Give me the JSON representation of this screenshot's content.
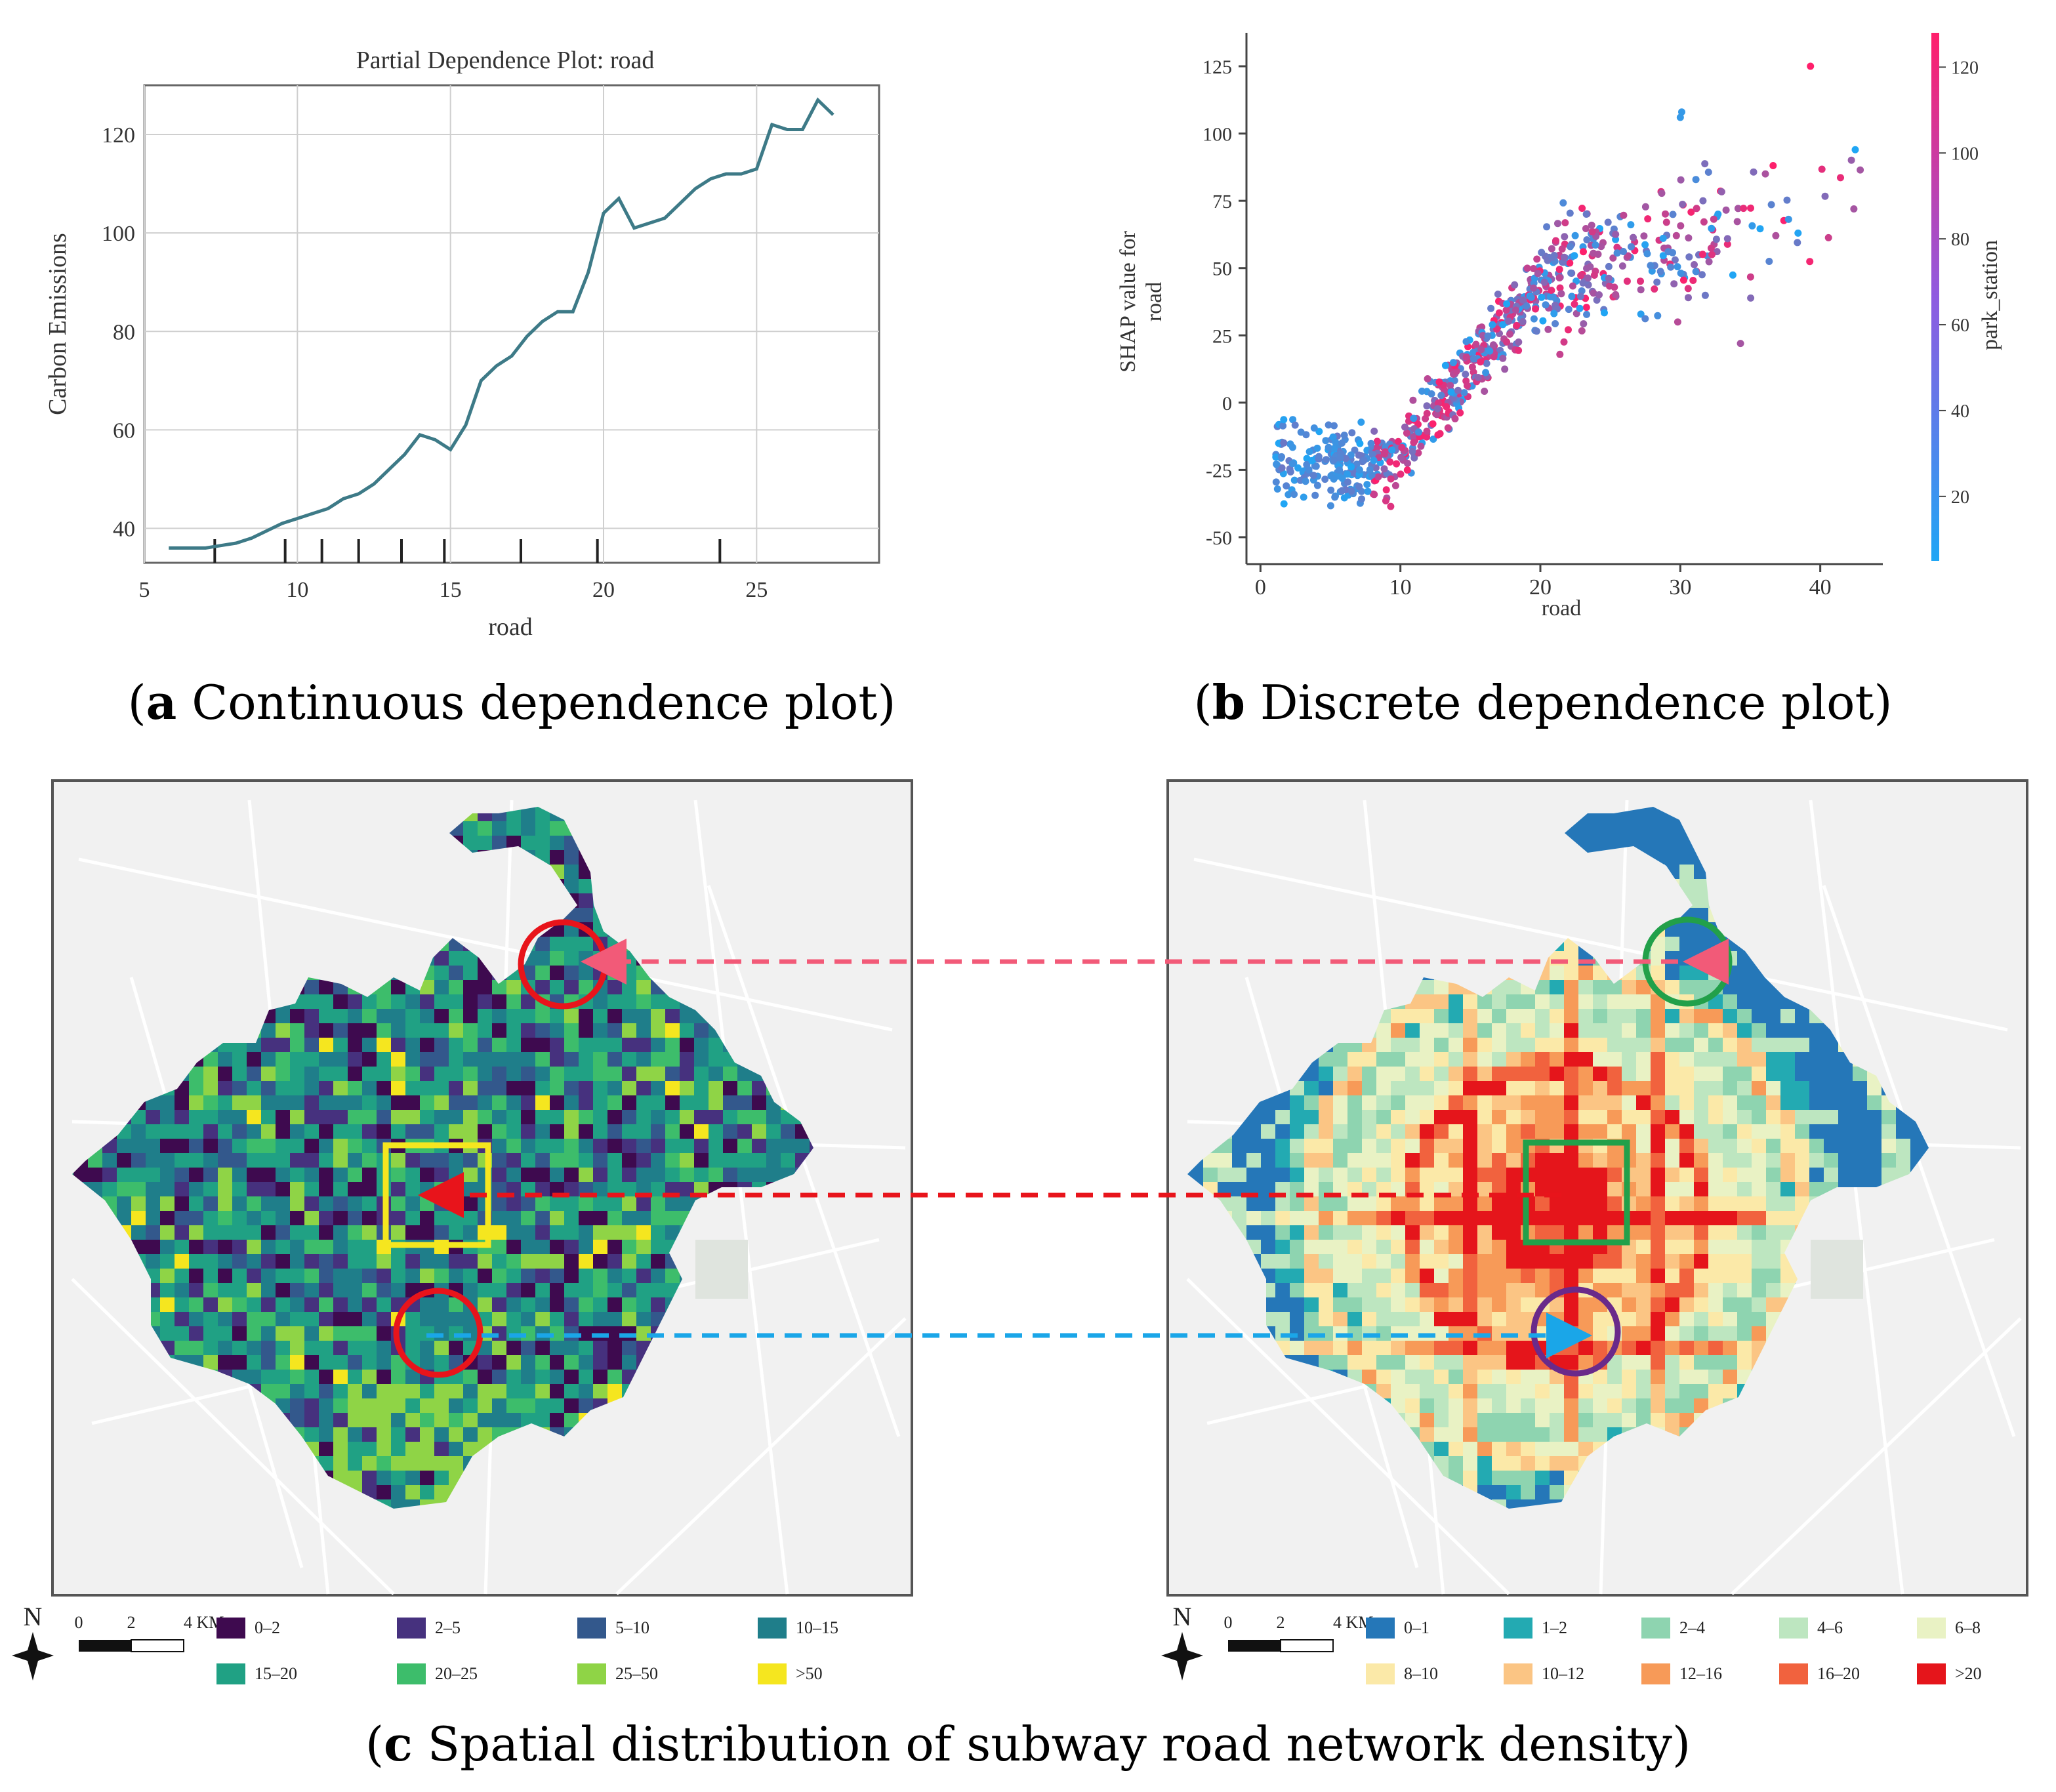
{
  "captions": {
    "a_letter": "a",
    "a_text": " Continuous dependence plot",
    "b_letter": "b",
    "b_text": " Discrete dependence plot",
    "c_letter": "c",
    "c_text": " Spatial distribution of subway road network density"
  },
  "chart_data": [
    {
      "type": "line",
      "title": "Partial Dependence Plot: road",
      "xlabel": "road",
      "ylabel": "Carbon Emissions",
      "xlim": [
        5,
        29
      ],
      "ylim": [
        33,
        130
      ],
      "xticks": [
        5,
        10,
        15,
        20,
        25
      ],
      "yticks": [
        40,
        60,
        80,
        100,
        120
      ],
      "grid": true,
      "x": [
        5.8,
        6.5,
        7.0,
        7.5,
        8.0,
        8.5,
        9.0,
        9.5,
        10.0,
        10.5,
        11.0,
        11.5,
        12.0,
        12.5,
        13.0,
        13.5,
        14.0,
        14.5,
        15.0,
        15.5,
        16.0,
        16.5,
        17.0,
        17.5,
        18.0,
        18.5,
        19.0,
        19.5,
        20.0,
        20.5,
        21.0,
        21.5,
        22.0,
        22.5,
        23.0,
        23.5,
        24.0,
        24.5,
        25.0,
        25.5,
        26.0,
        26.5,
        27.0,
        27.5
      ],
      "values": [
        36,
        36,
        36,
        36.5,
        37,
        38,
        39.5,
        41,
        42,
        43,
        44,
        46,
        47,
        49,
        52,
        55,
        59,
        58,
        56,
        61,
        70,
        73,
        75,
        79,
        82,
        84,
        84,
        92,
        104,
        107,
        101,
        102,
        103,
        106,
        109,
        111,
        112,
        112,
        113,
        122,
        121,
        121,
        127,
        124
      ],
      "rug": [
        7.3,
        9.6,
        10.8,
        12.0,
        13.4,
        14.8,
        17.3,
        19.8,
        23.8
      ]
    },
    {
      "type": "scatter",
      "xlabel": "road",
      "ylabel": "SHAP value for road",
      "xlim": [
        -1,
        44
      ],
      "ylim": [
        -60,
        135
      ],
      "xticks": [
        0,
        10,
        20,
        30,
        40
      ],
      "yticks": [
        -50,
        -25,
        0,
        25,
        50,
        75,
        100,
        125
      ],
      "colorbar": {
        "label": "park_station",
        "ticks": [
          20,
          40,
          60,
          80,
          100,
          120
        ],
        "range": [
          5,
          128
        ],
        "low_color": "#1fa6f5",
        "high_color": "#ff1f6b"
      }
    },
    {
      "type": "heatmap",
      "name": "left-map",
      "palette": [
        "#3e0a4f",
        "#46317e",
        "#33588c",
        "#1f7e8a",
        "#20a184",
        "#3dbd6b",
        "#8fd446",
        "#f5e61f"
      ],
      "legend": [
        "0–2",
        "2–5",
        "5–10",
        "10–15",
        "15–20",
        "20–25",
        "25–50",
        ">50"
      ],
      "scale": {
        "north": "N",
        "ticks": [
          "0",
          "2",
          "4 KM"
        ]
      }
    },
    {
      "type": "heatmap",
      "name": "right-map",
      "palette": [
        "#2577b8",
        "#23aab2",
        "#8ed4b0",
        "#bde6c0",
        "#e9f2c4",
        "#fbe9a8",
        "#fbc584",
        "#f79a58",
        "#f1623e",
        "#e5151b"
      ],
      "legend": [
        "0–1",
        "1–2",
        "2–4",
        "4–6",
        "6–8",
        "8–10",
        "10–12",
        "12–16",
        "16–20",
        ">20"
      ],
      "scale": {
        "north": "N",
        "ticks": [
          "0",
          "2",
          "4 KM"
        ]
      }
    }
  ]
}
